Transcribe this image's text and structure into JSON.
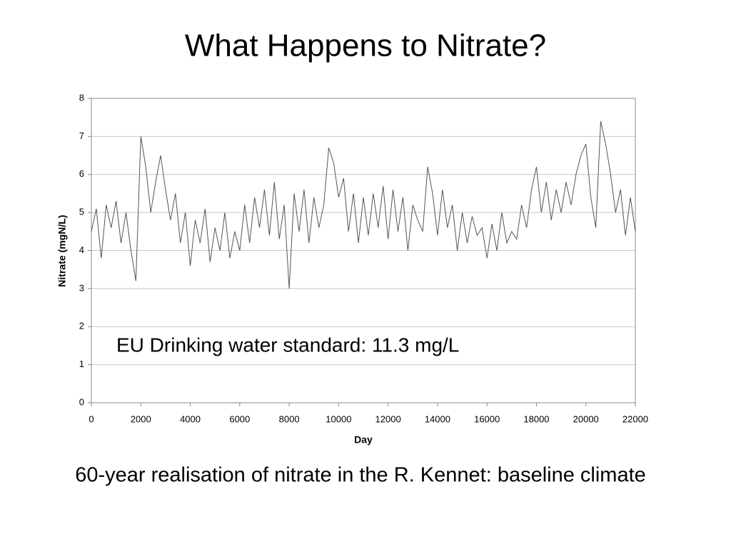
{
  "chart_data": {
    "type": "line",
    "title": "What Happens to Nitrate?",
    "x_label": "Day",
    "y_label": "Nitrate (mgN/L)",
    "annotation": "EU Drinking water standard: 11.3 mg/L",
    "caption": "60-year realisation of nitrate in the R. Kennet: baseline climate",
    "x": [
      0,
      200,
      400,
      600,
      800,
      1000,
      1200,
      1400,
      1600,
      1800,
      2000,
      2200,
      2400,
      2600,
      2800,
      3000,
      3200,
      3400,
      3600,
      3800,
      4000,
      4200,
      4400,
      4600,
      4800,
      5000,
      5200,
      5400,
      5600,
      5800,
      6000,
      6200,
      6400,
      6600,
      6800,
      7000,
      7200,
      7400,
      7600,
      7800,
      8000,
      8200,
      8400,
      8600,
      8800,
      9000,
      9200,
      9400,
      9600,
      9800,
      10000,
      10200,
      10400,
      10600,
      10800,
      11000,
      11200,
      11400,
      11600,
      11800,
      12000,
      12200,
      12400,
      12600,
      12800,
      13000,
      13200,
      13400,
      13600,
      13800,
      14000,
      14200,
      14400,
      14600,
      14800,
      15000,
      15200,
      15400,
      15600,
      15800,
      16000,
      16200,
      16400,
      16600,
      16800,
      17000,
      17200,
      17400,
      17600,
      17800,
      18000,
      18200,
      18400,
      18600,
      18800,
      19000,
      19200,
      19400,
      19600,
      19800,
      20000,
      20200,
      20400,
      20600,
      20800,
      21000,
      21200,
      21400,
      21600,
      21800,
      22000
    ],
    "series": [
      {
        "name": "Nitrate",
        "color": "#555555",
        "values": [
          4.5,
          5.1,
          3.8,
          5.2,
          4.6,
          5.3,
          4.2,
          5.0,
          4.0,
          3.2,
          7.0,
          6.2,
          5.0,
          5.8,
          6.5,
          5.6,
          4.8,
          5.5,
          4.2,
          5.0,
          3.6,
          4.8,
          4.2,
          5.1,
          3.7,
          4.6,
          4.0,
          5.0,
          3.8,
          4.5,
          4.0,
          5.2,
          4.2,
          5.4,
          4.6,
          5.6,
          4.4,
          5.8,
          4.3,
          5.2,
          3.0,
          5.5,
          4.5,
          5.6,
          4.2,
          5.4,
          4.6,
          5.2,
          6.7,
          6.3,
          5.4,
          5.9,
          4.5,
          5.5,
          4.2,
          5.4,
          4.4,
          5.5,
          4.6,
          5.7,
          4.3,
          5.6,
          4.5,
          5.4,
          4.0,
          5.2,
          4.8,
          4.5,
          6.2,
          5.5,
          4.4,
          5.6,
          4.6,
          5.2,
          4.0,
          5.0,
          4.2,
          4.9,
          4.4,
          4.6,
          3.8,
          4.7,
          4.0,
          5.0,
          4.2,
          4.5,
          4.3,
          5.2,
          4.6,
          5.6,
          6.2,
          5.0,
          5.8,
          4.8,
          5.6,
          5.0,
          5.8,
          5.2,
          6.0,
          6.5,
          6.8,
          5.4,
          4.6,
          7.4,
          6.8,
          6.0,
          5.0,
          5.6,
          4.4,
          5.4,
          4.5
        ]
      }
    ],
    "xlim": [
      0,
      22000
    ],
    "ylim": [
      0,
      8
    ],
    "xticks": [
      0,
      2000,
      4000,
      6000,
      8000,
      10000,
      12000,
      14000,
      16000,
      18000,
      20000,
      22000
    ],
    "yticks": [
      0,
      1,
      2,
      3,
      4,
      5,
      6,
      7,
      8
    ],
    "grid": true
  }
}
